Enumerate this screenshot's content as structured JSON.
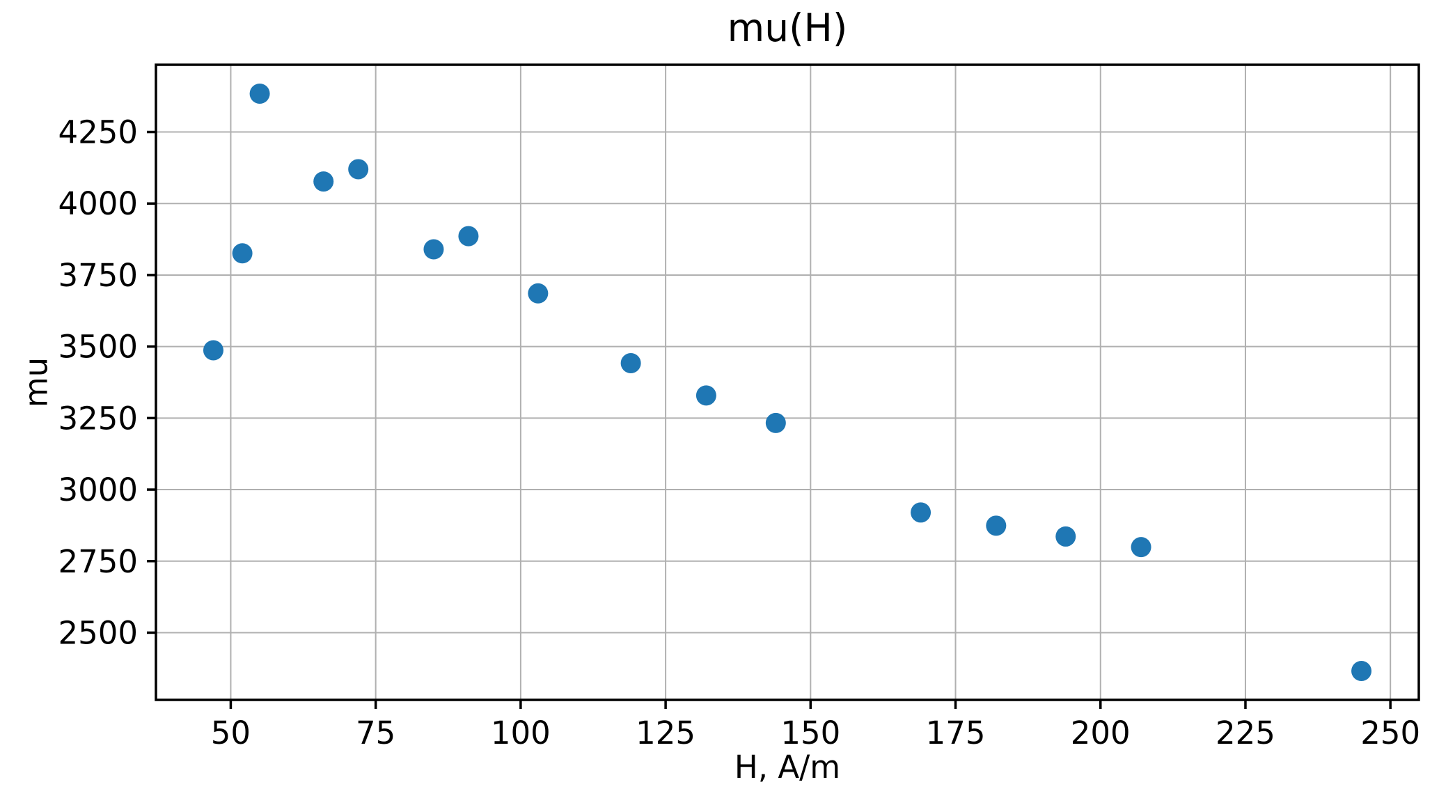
{
  "chart_data": {
    "type": "scatter",
    "title": "mu(H)",
    "xlabel": "H, A/m",
    "ylabel": "mu",
    "xlim": [
      37.1,
      254.9
    ],
    "ylim": [
      2265,
      4485
    ],
    "x_ticks": [
      50,
      75,
      100,
      125,
      150,
      175,
      200,
      225,
      250
    ],
    "y_ticks": [
      2500,
      2750,
      3000,
      3250,
      3500,
      3750,
      4000,
      4250
    ],
    "grid": true,
    "legend": false,
    "colors": {
      "marker": "#1f77b4",
      "grid": "#b0b0b0",
      "axis": "#000000",
      "background": "#ffffff"
    },
    "series": [
      {
        "name": "mu",
        "points": [
          [
            47,
            3487
          ],
          [
            52,
            3826
          ],
          [
            55,
            4384
          ],
          [
            66,
            4077
          ],
          [
            72,
            4120
          ],
          [
            85,
            3840
          ],
          [
            91,
            3886
          ],
          [
            103,
            3686
          ],
          [
            119,
            3442
          ],
          [
            132,
            3329
          ],
          [
            144,
            3233
          ],
          [
            169,
            2920
          ],
          [
            182,
            2874
          ],
          [
            194,
            2836
          ],
          [
            207,
            2799
          ],
          [
            245,
            2366
          ]
        ]
      }
    ]
  }
}
